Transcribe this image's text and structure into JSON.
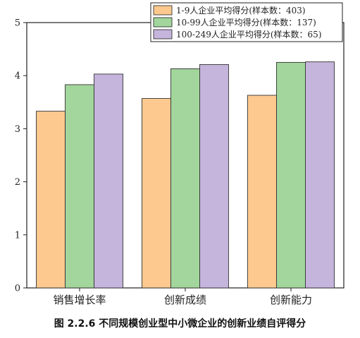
{
  "chart_data": {
    "type": "bar",
    "categories": [
      "销售增长率",
      "创新成绩",
      "创新能力"
    ],
    "series": [
      {
        "name": "1-9人企业平均得分(样本数：403)",
        "values": [
          3.33,
          3.57,
          3.63
        ],
        "color": "#fdc98e"
      },
      {
        "name": "10-99人企业平均得分(样本数：137)",
        "values": [
          3.83,
          4.13,
          4.25
        ],
        "color": "#a2d69c"
      },
      {
        "name": "100-249人企业平均得分(样本数：65)",
        "values": [
          4.03,
          4.21,
          4.26
        ],
        "color": "#c5b4dc"
      }
    ],
    "ylim": [
      0,
      5
    ],
    "yticks": [
      "0",
      "1",
      "2",
      "3",
      "4",
      "5"
    ],
    "legend_position": "top-right",
    "grid": false
  },
  "caption": "图 2.2.6  不同规模创业型中小微企业的创新业绩自评得分"
}
